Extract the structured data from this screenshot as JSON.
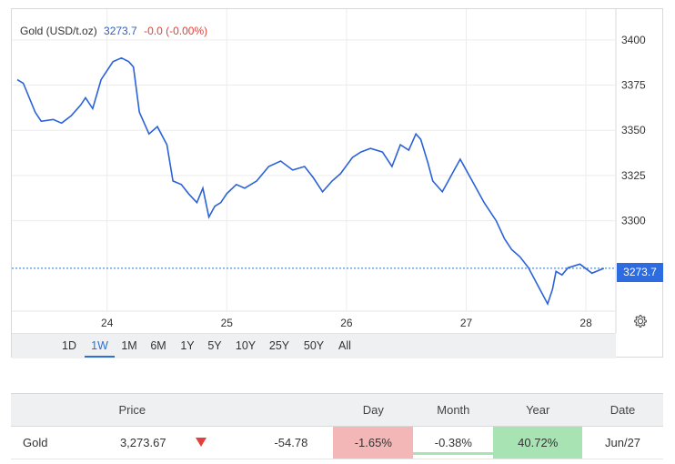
{
  "legend": {
    "name": "Gold (USD/t.oz)",
    "price": "3273.7",
    "change": "-0.0 (-0.00%)"
  },
  "last_price_tag": "3273.7",
  "colors": {
    "line": "#2a62d8",
    "accent": "#2b6fd9",
    "negative": "#e0413a",
    "neg_bg": "#f3b7b7",
    "pos_bg": "#a8e3b3"
  },
  "ranges": [
    "1D",
    "1W",
    "1M",
    "6M",
    "1Y",
    "5Y",
    "10Y",
    "25Y",
    "50Y",
    "All"
  ],
  "active_range": "1W",
  "settings_icon": "gear-icon",
  "chart_data": {
    "type": "line",
    "xlabel": "",
    "ylabel": "",
    "x_ticks": [
      "24",
      "25",
      "26",
      "27",
      "28"
    ],
    "y_ticks": [
      3300,
      3325,
      3350,
      3375,
      3400
    ],
    "ylim": [
      3250,
      3415
    ],
    "xlim": [
      23.25,
      28.25
    ],
    "grid": true,
    "last_value": 3273.7,
    "series": [
      {
        "x": [
          23.25,
          23.3,
          23.4,
          23.45,
          23.55,
          23.62,
          23.7,
          23.78,
          23.82,
          23.88,
          23.95,
          24.0,
          24.05,
          24.12,
          24.18,
          24.22,
          24.27,
          24.35,
          24.42,
          24.5,
          24.55,
          24.62,
          24.68,
          24.75,
          24.8,
          24.85,
          24.9,
          24.95,
          25.0,
          25.08,
          25.15,
          25.25,
          25.35,
          25.45,
          25.55,
          25.65,
          25.72,
          25.8,
          25.88,
          25.95,
          26.05,
          26.12,
          26.2,
          26.3,
          26.38,
          26.45,
          26.52,
          26.58,
          26.62,
          26.68,
          26.72,
          26.8,
          26.85,
          26.9,
          26.95,
          27.05,
          27.15,
          27.25,
          27.32,
          27.38,
          27.45,
          27.52,
          27.6,
          27.68,
          27.72,
          27.75,
          27.8,
          27.85,
          27.95,
          28.05,
          28.15
        ],
        "values": [
          3378,
          3376,
          3360,
          3355,
          3356,
          3354,
          3358,
          3364,
          3368,
          3362,
          3378,
          3383,
          3388,
          3390,
          3388,
          3385,
          3360,
          3348,
          3352,
          3342,
          3322,
          3320,
          3315,
          3310,
          3318,
          3302,
          3308,
          3310,
          3315,
          3320,
          3318,
          3322,
          3330,
          3333,
          3328,
          3330,
          3324,
          3316,
          3322,
          3326,
          3335,
          3338,
          3340,
          3338,
          3330,
          3342,
          3339,
          3348,
          3345,
          3332,
          3322,
          3316,
          3322,
          3328,
          3334,
          3322,
          3310,
          3300,
          3290,
          3284,
          3280,
          3274,
          3264,
          3254,
          3262,
          3272,
          3270,
          3274,
          3276,
          3271,
          3273.7
        ]
      }
    ]
  },
  "table": {
    "headers": [
      "",
      "Price",
      "",
      "",
      "Day",
      "Month",
      "Year",
      "Date"
    ],
    "row": {
      "name": "Gold",
      "price": "3,273.67",
      "direction": "down-triangle-icon",
      "change": "-54.78",
      "day": "-1.65%",
      "month": "-0.38%",
      "year": "40.72%",
      "date": "Jun/27"
    }
  }
}
